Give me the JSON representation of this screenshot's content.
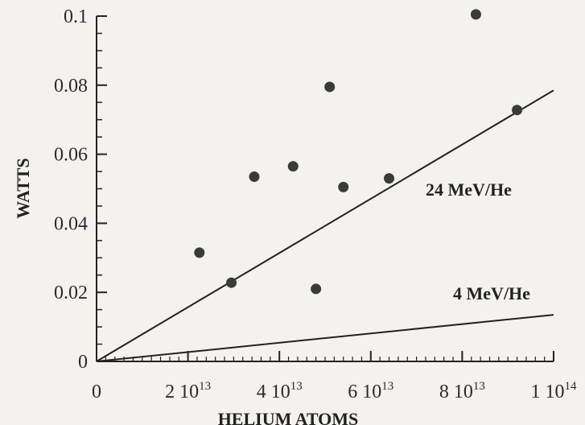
{
  "chart_data": {
    "type": "scatter",
    "title": "",
    "xlabel": "HELIUM ATOMS",
    "ylabel": "WATTS",
    "xlim": [
      0,
      100000000000000.0
    ],
    "ylim": [
      0,
      0.1
    ],
    "grid": false,
    "x_ticks": [
      {
        "value": 0,
        "base": "0",
        "exp": ""
      },
      {
        "value": 20000000000000.0,
        "base": "2 10",
        "exp": "13"
      },
      {
        "value": 40000000000000.0,
        "base": "4 10",
        "exp": "13"
      },
      {
        "value": 60000000000000.0,
        "base": "6 10",
        "exp": "13"
      },
      {
        "value": 80000000000000.0,
        "base": "8 10",
        "exp": "13"
      },
      {
        "value": 100000000000000.0,
        "base": "1 10",
        "exp": "14"
      }
    ],
    "y_ticks": [
      {
        "value": 0,
        "label": "0"
      },
      {
        "value": 0.02,
        "label": "0.02"
      },
      {
        "value": 0.04,
        "label": "0.04"
      },
      {
        "value": 0.06,
        "label": "0.06"
      },
      {
        "value": 0.08,
        "label": "0.08"
      },
      {
        "value": 0.1,
        "label": "0.1"
      }
    ],
    "points": [
      {
        "x": 22500000000000.0,
        "y": 0.0315
      },
      {
        "x": 29500000000000.0,
        "y": 0.0228
      },
      {
        "x": 34500000000000.0,
        "y": 0.0535
      },
      {
        "x": 43000000000000.0,
        "y": 0.0565
      },
      {
        "x": 48000000000000.0,
        "y": 0.021
      },
      {
        "x": 51000000000000.0,
        "y": 0.0795
      },
      {
        "x": 54000000000000.0,
        "y": 0.0505
      },
      {
        "x": 64000000000000.0,
        "y": 0.053
      },
      {
        "x": 83000000000000.0,
        "y": 0.1005
      },
      {
        "x": 92000000000000.0,
        "y": 0.0728
      }
    ],
    "lines": [
      {
        "name": "24 MeV/He",
        "x": [
          0,
          100000000000000.0
        ],
        "y": [
          0,
          0.0785
        ],
        "label_at": {
          "x": 72000000000000.0,
          "y": 0.048
        }
      },
      {
        "name": "4 MeV/He",
        "x": [
          0,
          100000000000000.0
        ],
        "y": [
          0,
          0.0135
        ],
        "label_at": {
          "x": 78000000000000.0,
          "y": 0.018
        }
      }
    ]
  }
}
